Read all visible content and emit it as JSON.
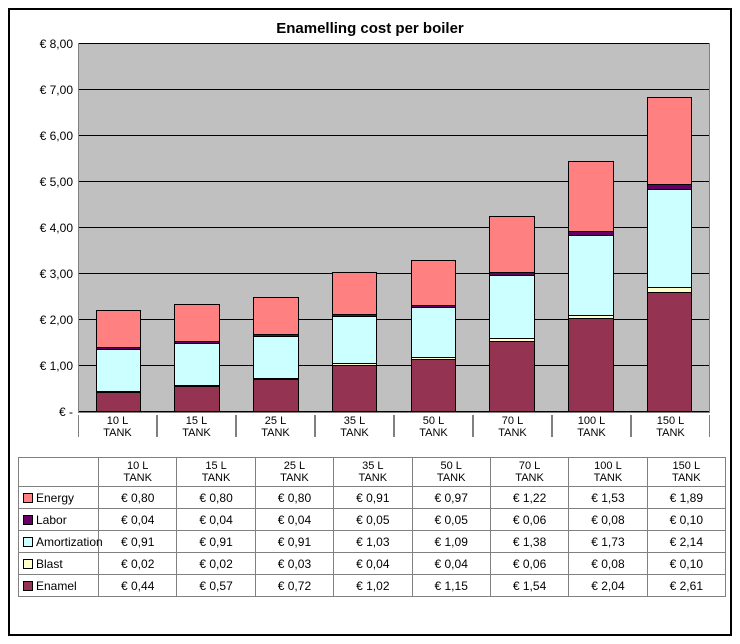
{
  "chart": {
    "type": "stacked-bar",
    "title": "Enamelling cost per boiler",
    "background_color": "#c0c0c0",
    "grid_color": "#000000",
    "y": {
      "min": 0,
      "max": 8,
      "step": 1,
      "labels": [
        "€  -",
        "€ 1,00",
        "€ 2,00",
        "€ 3,00",
        "€ 4,00",
        "€ 5,00",
        "€ 6,00",
        "€ 7,00",
        "€ 8,00"
      ],
      "label_fontsize": 12
    },
    "categories": [
      "10 L TANK",
      "15 L TANK",
      "25 L TANK",
      "35 L TANK",
      "50 L TANK",
      "70 L TANK",
      "100 L TANK",
      "150 L TANK"
    ],
    "series": [
      {
        "name": "Enamel",
        "color": "#953353",
        "values": [
          0.44,
          0.57,
          0.72,
          1.02,
          1.15,
          1.54,
          2.04,
          2.61
        ]
      },
      {
        "name": "Blast",
        "color": "#ffffcc",
        "values": [
          0.02,
          0.02,
          0.03,
          0.04,
          0.04,
          0.06,
          0.08,
          0.1
        ]
      },
      {
        "name": "Amortization",
        "color": "#ccffff",
        "values": [
          0.91,
          0.91,
          0.91,
          1.03,
          1.09,
          1.38,
          1.73,
          2.14
        ]
      },
      {
        "name": "Labor",
        "color": "#660066",
        "values": [
          0.04,
          0.04,
          0.04,
          0.05,
          0.05,
          0.06,
          0.08,
          0.1
        ]
      },
      {
        "name": "Energy",
        "color": "#ff8080",
        "values": [
          0.8,
          0.8,
          0.8,
          0.91,
          0.97,
          1.22,
          1.53,
          1.89
        ]
      }
    ],
    "table_cells": {
      "Energy": [
        "€ 0,80",
        "€ 0,80",
        "€ 0,80",
        "€ 0,91",
        "€ 0,97",
        "€ 1,22",
        "€ 1,53",
        "€ 1,89"
      ],
      "Labor": [
        "€ 0,04",
        "€ 0,04",
        "€ 0,04",
        "€ 0,05",
        "€ 0,05",
        "€ 0,06",
        "€ 0,08",
        "€ 0,10"
      ],
      "Amortization": [
        "€ 0,91",
        "€ 0,91",
        "€ 0,91",
        "€ 1,03",
        "€ 1,09",
        "€ 1,38",
        "€ 1,73",
        "€ 2,14"
      ],
      "Blast": [
        "€ 0,02",
        "€ 0,02",
        "€ 0,03",
        "€ 0,04",
        "€ 0,04",
        "€ 0,06",
        "€ 0,08",
        "€ 0,10"
      ],
      "Enamel": [
        "€ 0,44",
        "€ 0,57",
        "€ 0,72",
        "€ 1,02",
        "€ 1,15",
        "€ 1,54",
        "€ 2,04",
        "€ 2,61"
      ]
    },
    "table_row_order": [
      "Energy",
      "Labor",
      "Amortization",
      "Blast",
      "Enamel"
    ]
  }
}
